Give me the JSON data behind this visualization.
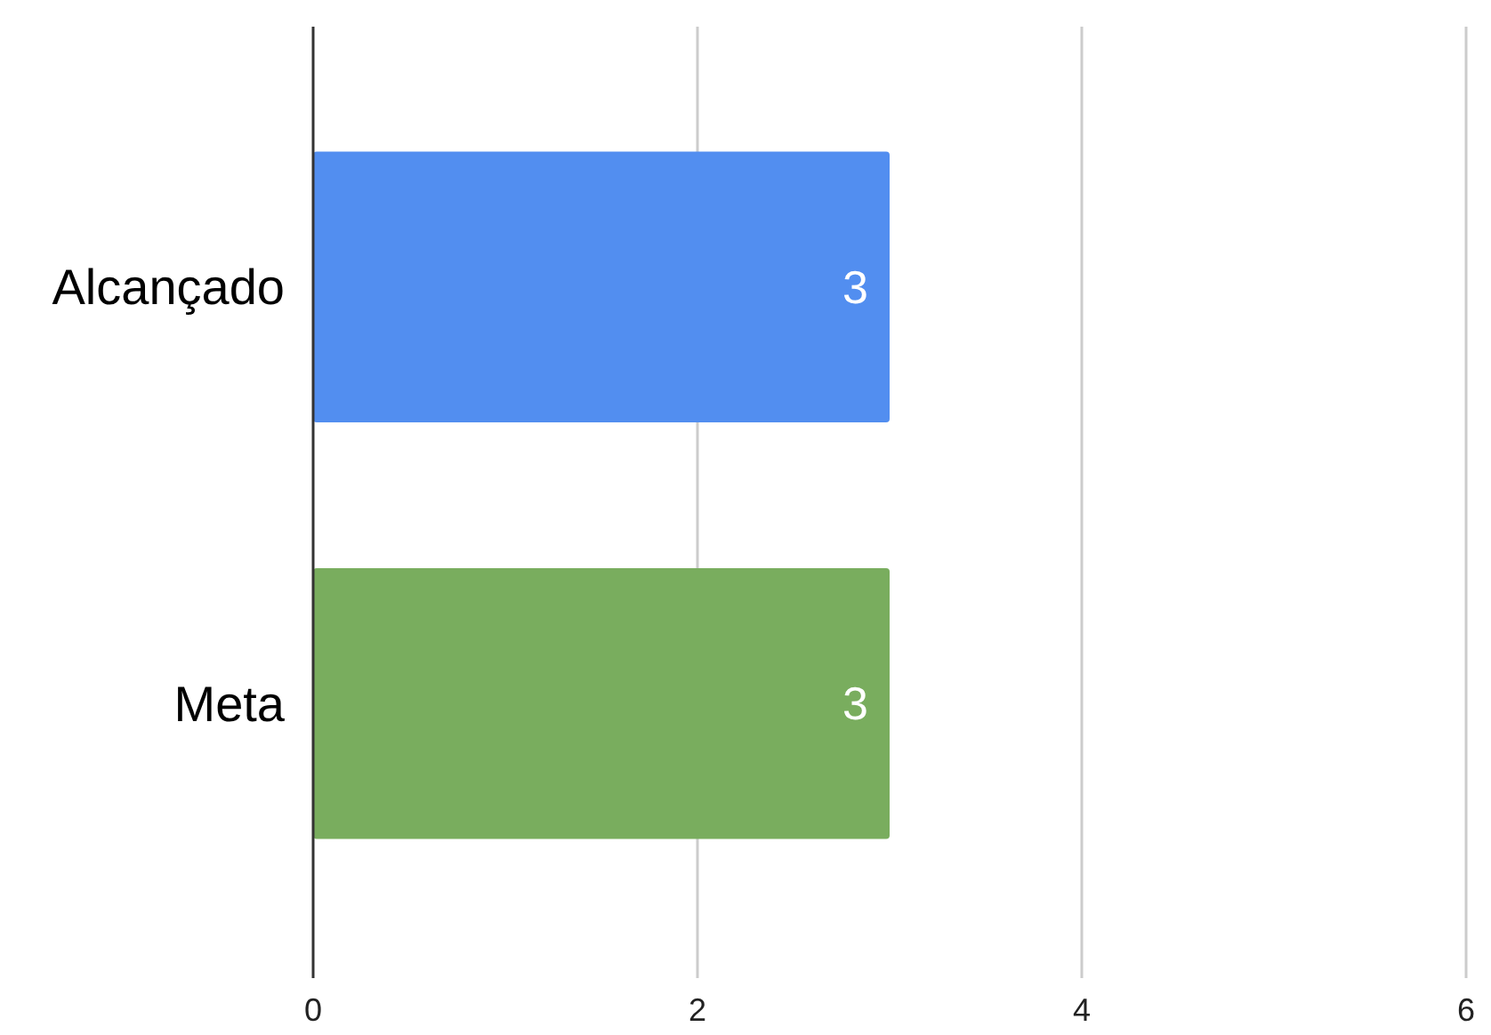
{
  "chart_data": {
    "type": "bar",
    "orientation": "horizontal",
    "categories": [
      "Alcançado",
      "Meta"
    ],
    "values": [
      3,
      3
    ],
    "colors": [
      "#528ef0",
      "#79ad5e"
    ],
    "xlim": [
      0,
      6
    ],
    "xticks": [
      0,
      2,
      4,
      6
    ],
    "grid": "x",
    "data_labels": true
  }
}
